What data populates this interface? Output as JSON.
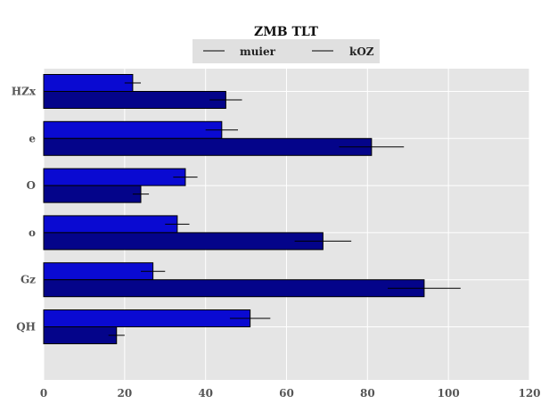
{
  "chart_data": {
    "type": "bar",
    "orientation": "horizontal",
    "title": "ZMB TLT",
    "categories": [
      "HZx",
      "e",
      "O",
      "o",
      "Gz",
      "QH"
    ],
    "series": [
      {
        "name": "muier",
        "values": [
          22,
          44,
          35,
          33,
          27,
          51
        ],
        "errors": [
          2,
          4,
          3,
          3,
          3,
          5
        ],
        "color": "#0a0ad2"
      },
      {
        "name": "kOZ",
        "values": [
          45,
          81,
          24,
          69,
          94,
          18
        ],
        "errors": [
          4,
          8,
          2,
          7,
          9,
          2
        ],
        "color": "#04048a"
      }
    ],
    "xlim": [
      0,
      120
    ],
    "xticks": [
      0,
      20,
      40,
      60,
      80,
      100,
      120
    ],
    "grid": true,
    "legend_position": "top-center",
    "background": "#e5e5e5"
  }
}
